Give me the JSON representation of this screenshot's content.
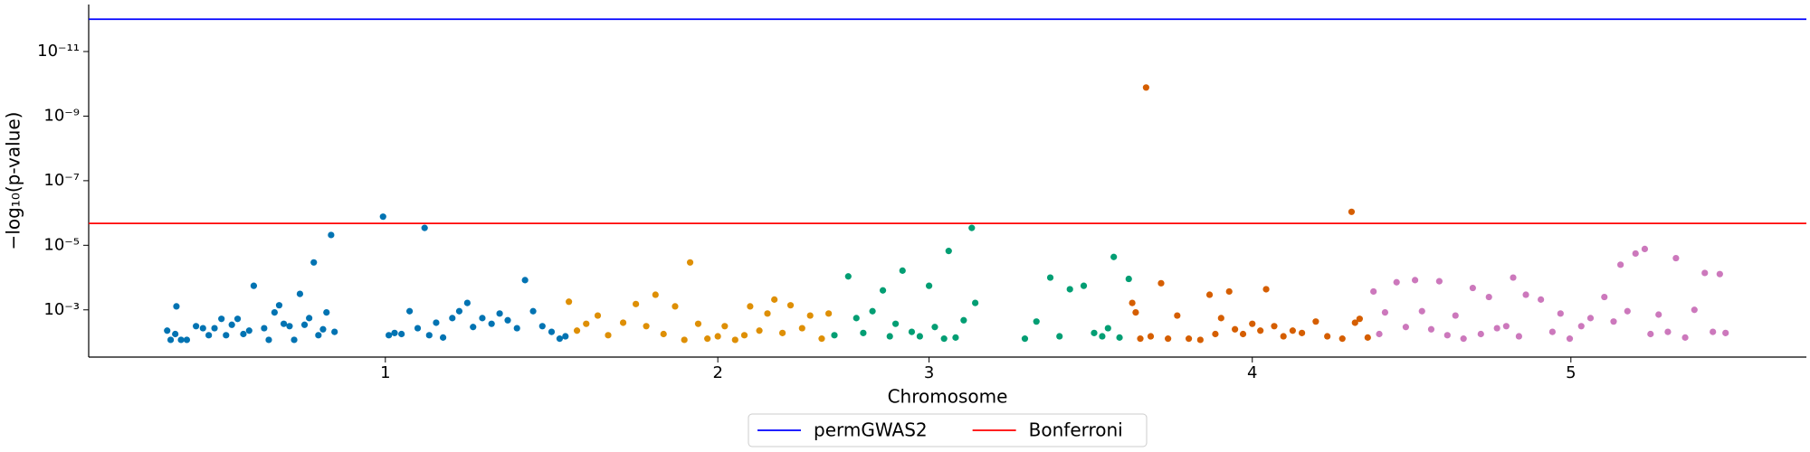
{
  "chart_data": {
    "type": "scatter",
    "xlabel": "Chromosome",
    "ylabel": "−log₁₀(p-value)",
    "xlim": [
      77,
      1565
    ],
    "xticks": [
      {
        "value": 334,
        "label": "1"
      },
      {
        "value": 622,
        "label": "2"
      },
      {
        "value": 805,
        "label": "3"
      },
      {
        "value": 1085,
        "label": "4"
      },
      {
        "value": 1361,
        "label": "5"
      }
    ],
    "ylog": true,
    "ylim": [
      0.029,
      3.5e-13
    ],
    "yticks": [
      {
        "value": 1e-11,
        "label": "10⁻¹¹"
      },
      {
        "value": 1e-09,
        "label": "10⁻⁹"
      },
      {
        "value": 1e-07,
        "label": "10⁻⁷"
      },
      {
        "value": 1e-05,
        "label": "10⁻⁵"
      },
      {
        "value": 0.001,
        "label": "10⁻³"
      }
    ],
    "legend_position": "bottom",
    "lines": [
      {
        "name": "permGWAS2",
        "color": "#0000ff",
        "value": 1e-12
      },
      {
        "name": "Bonferroni",
        "color": "#ff0000",
        "value": 2.1e-06
      }
    ],
    "series": [
      {
        "color": "#0173b2",
        "x": [
          145,
          148,
          152,
          157,
          153,
          162,
          170,
          176,
          181,
          186,
          192,
          196,
          201,
          206,
          211,
          216,
          220,
          229,
          233,
          238,
          242,
          246,
          251,
          255,
          260,
          264,
          268,
          272,
          276,
          280,
          283,
          287,
          290,
          332,
          337,
          342,
          348,
          355,
          362,
          368,
          372,
          378,
          384,
          392,
          398,
          405,
          410,
          418,
          426,
          433,
          440,
          448,
          455,
          462,
          470,
          478,
          485,
          490
        ],
        "values": [
          0.0044,
          0.0085,
          0.0056,
          0.0085,
          0.00078,
          0.0085,
          0.0032,
          0.0037,
          0.0061,
          0.0037,
          0.0019,
          0.0061,
          0.0029,
          0.0019,
          0.0056,
          0.0044,
          0.00018,
          0.0037,
          0.0085,
          0.0012,
          0.00072,
          0.0027,
          0.0032,
          0.0085,
          0.00032,
          0.0029,
          0.0018,
          3.4e-05,
          0.0061,
          0.004,
          0.0012,
          4.8e-06,
          0.0048,
          1.3e-06,
          0.0061,
          0.0052,
          0.0056,
          0.0011,
          0.0037,
          2.9e-06,
          0.0061,
          0.0025,
          0.0072,
          0.0018,
          0.0011,
          0.00061,
          0.0034,
          0.0018,
          0.0027,
          0.0013,
          0.0021,
          0.0037,
          0.00012,
          0.0011,
          0.0032,
          0.0048,
          0.0078,
          0.0066
        ]
      },
      {
        "color": "#de8f05",
        "x": [
          493,
          500,
          508,
          518,
          527,
          540,
          551,
          560,
          568,
          575,
          585,
          593,
          598,
          605,
          613,
          622,
          628,
          637,
          645,
          650,
          658,
          665,
          671,
          678,
          685,
          695,
          702,
          712,
          718
        ],
        "values": [
          0.00056,
          0.0044,
          0.0027,
          0.0015,
          0.0061,
          0.0025,
          0.00066,
          0.0032,
          0.00034,
          0.0056,
          0.00078,
          0.0085,
          3.4e-05,
          0.0027,
          0.0078,
          0.0066,
          0.0032,
          0.0085,
          0.0061,
          0.00078,
          0.0044,
          0.0013,
          0.00048,
          0.0052,
          0.00072,
          0.0037,
          0.0015,
          0.0078,
          0.0013
        ]
      },
      {
        "color": "#029e73",
        "x": [
          723,
          735,
          742,
          748,
          756,
          765,
          771,
          776,
          782,
          790,
          797,
          805,
          810,
          818,
          822,
          828,
          835,
          842,
          845,
          888,
          898,
          910,
          918,
          927,
          939,
          948,
          955,
          960,
          965,
          970,
          978
        ],
        "values": [
          0.0061,
          9.2e-05,
          0.0018,
          0.0052,
          0.0011,
          0.00025,
          0.0066,
          0.0027,
          6.1e-05,
          0.0048,
          0.0066,
          0.00018,
          0.0034,
          0.0078,
          1.5e-05,
          0.0072,
          0.0021,
          2.9e-06,
          0.00061,
          0.0078,
          0.0023,
          0.0001,
          0.0066,
          0.00023,
          0.00018,
          0.0052,
          0.0066,
          0.0037,
          2.3e-05,
          0.0072,
          0.00011
        ]
      },
      {
        "color": "#d55e00",
        "x": [
          981,
          984,
          988,
          993,
          997,
          1006,
          1012,
          1020,
          1030,
          1040,
          1048,
          1053,
          1058,
          1065,
          1070,
          1077,
          1085,
          1092,
          1097,
          1104,
          1112,
          1120,
          1128,
          1140,
          1150,
          1163,
          1171,
          1174,
          1178,
          1185
        ],
        "values": [
          0.00061,
          0.0012,
          0.0078,
          1.3e-10,
          0.0066,
          0.00015,
          0.0078,
          0.0015,
          0.0078,
          0.0085,
          0.00034,
          0.0056,
          0.0018,
          0.00027,
          0.004,
          0.0056,
          0.0027,
          0.0044,
          0.00023,
          0.0032,
          0.0066,
          0.0044,
          0.0052,
          0.0023,
          0.0066,
          0.0078,
          9.2e-07,
          0.0025,
          0.0019,
          0.0072
        ]
      },
      {
        "color": "#cc78bc",
        "x": [
          1190,
          1195,
          1200,
          1210,
          1218,
          1226,
          1232,
          1240,
          1247,
          1254,
          1261,
          1268,
          1276,
          1283,
          1290,
          1297,
          1305,
          1311,
          1316,
          1322,
          1335,
          1345,
          1352,
          1360,
          1370,
          1378,
          1390,
          1398,
          1404,
          1410,
          1417,
          1425,
          1430,
          1437,
          1445,
          1452,
          1460,
          1468,
          1477,
          1484,
          1490,
          1495
        ],
        "values": [
          0.00027,
          0.0056,
          0.0012,
          0.00014,
          0.0034,
          0.00012,
          0.0011,
          0.004,
          0.00013,
          0.0061,
          0.0015,
          0.0078,
          0.00021,
          0.0056,
          0.0004,
          0.0037,
          0.0032,
          0.0001,
          0.0066,
          0.00034,
          0.00048,
          0.0048,
          0.0013,
          0.0078,
          0.0032,
          0.0018,
          0.0004,
          0.0023,
          4e-05,
          0.0011,
          1.8e-05,
          1.3e-05,
          0.0056,
          0.0014,
          0.0048,
          2.5e-05,
          0.0072,
          0.001,
          7.2e-05,
          0.0048,
          7.8e-05,
          0.0052
        ]
      }
    ]
  }
}
